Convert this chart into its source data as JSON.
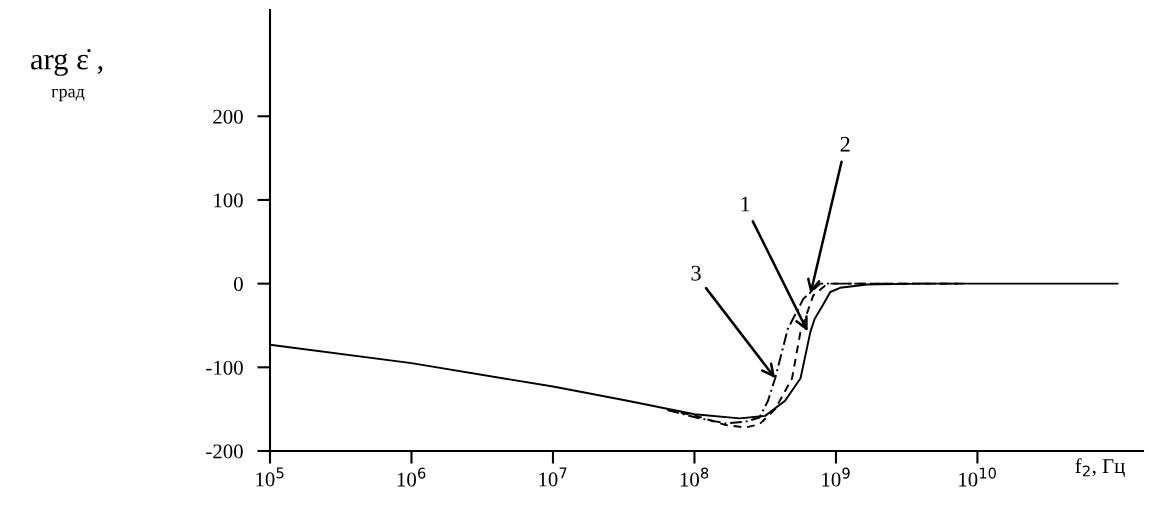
{
  "chart_data": {
    "type": "line",
    "ylabel": "arg ε̇ ,",
    "xlabel": "f$_{2}$, Гц",
    "log": "x",
    "xlim": [
      100000,
      148000000000
    ],
    "ylim": [
      -200,
      327
    ],
    "xticks": [
      {
        "value": 100000,
        "label": "10$^{5}$"
      },
      {
        "value": 1000000,
        "label": "10$^{6}$"
      },
      {
        "value": 10000000,
        "label": "10$^{7}$"
      },
      {
        "value": 100000000,
        "label": "10$^{8}$"
      },
      {
        "value": 1000000000,
        "label": "10$^{9}$"
      },
      {
        "value": 10000000000,
        "label": "10$^{10}$"
      }
    ],
    "yticks": [
      -200,
      -100,
      0,
      100,
      200
    ],
    "grid": false,
    "series": [
      {
        "color": "#000000",
        "line_style": "solid",
        "x": [
          100000,
          1000000,
          10000000,
          31600000,
          100000000,
          209000000,
          316000000,
          437000000,
          562000000,
          661000000,
          708000000,
          813000000,
          912000000,
          1070000000,
          1660000000,
          3980000000,
          97700000000
        ],
        "values": [
          -73,
          -95,
          -123,
          -139,
          -156,
          -161,
          -158,
          -140,
          -113,
          -57,
          -42,
          -25,
          -10,
          -5,
          -1,
          0,
          0
        ]
      },
      {
        "color": "#000000",
        "line_style": "dashed",
        "x": [
          64600000,
          102300000,
          166000000,
          229000000,
          288000000,
          372000000,
          490000000,
          562000000,
          692000000,
          871000000,
          7940000000
        ],
        "values": [
          -151,
          -158,
          -169,
          -172,
          -168,
          -150,
          -113,
          -57,
          -14,
          0,
          0
        ]
      },
      {
        "color": "#000000",
        "line_style": "dashdot",
        "x": [
          64600000,
          102300000,
          166000000,
          229000000,
          288000000,
          331000000,
          372000000,
          457000000,
          589000000,
          776000000,
          7940000000
        ],
        "values": [
          -151,
          -160,
          -167,
          -165,
          -160,
          -140,
          -113,
          -54,
          -18,
          0,
          0
        ]
      }
    ],
    "annotations": [
      {
        "text": "1",
        "x": 631000000,
        "y": -57
      },
      {
        "text": "2",
        "x": 661000000,
        "y": -12
      },
      {
        "text": "3",
        "x": 372000000,
        "y": -113
      },
      "град"
    ]
  }
}
